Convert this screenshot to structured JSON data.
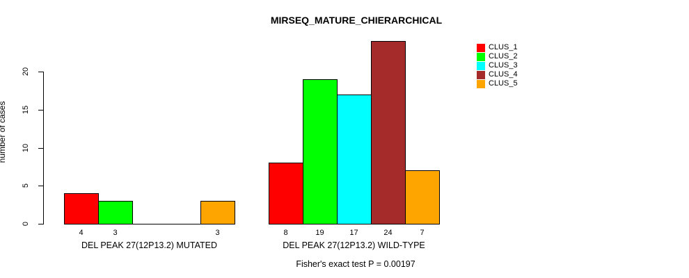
{
  "title": "MIRSEQ_MATURE_CHIERARCHICAL",
  "annotation": "Fisher's exact test P = 0.00197",
  "chart_data": {
    "type": "bar",
    "title": "MIRSEQ_MATURE_CHIERARCHICAL",
    "xlabel": "",
    "ylabel": "number of cases",
    "annotation": "Fisher's exact test P = 0.00197",
    "ylim": [
      0,
      24
    ],
    "yticks": [
      0,
      5,
      10,
      15,
      20
    ],
    "grid": false,
    "legend_position": "top-right",
    "categories": [
      "DEL PEAK 27(12P13.2) MUTATED",
      "DEL PEAK 27(12P13.2) WILD-TYPE"
    ],
    "series": [
      {
        "name": "CLUS_1",
        "color": "#FF0000",
        "values": [
          4,
          8
        ]
      },
      {
        "name": "CLUS_2",
        "color": "#00FF00",
        "values": [
          3,
          19
        ]
      },
      {
        "name": "CLUS_3",
        "color": "#00FFFF",
        "values": [
          0,
          17
        ]
      },
      {
        "name": "CLUS_4",
        "color": "#A52A2A",
        "values": [
          0,
          24
        ]
      },
      {
        "name": "CLUS_5",
        "color": "#FFA500",
        "values": [
          3,
          7
        ]
      }
    ],
    "bar_labels": [
      [
        "4",
        "3",
        "",
        "",
        "3"
      ],
      [
        "8",
        "19",
        "17",
        "24",
        "7"
      ]
    ]
  },
  "legend": {
    "items": [
      {
        "label": "CLUS_1",
        "color": "#FF0000"
      },
      {
        "label": "CLUS_2",
        "color": "#00FF00"
      },
      {
        "label": "CLUS_3",
        "color": "#00FFFF"
      },
      {
        "label": "CLUS_4",
        "color": "#A52A2A"
      },
      {
        "label": "CLUS_5",
        "color": "#FFA500"
      }
    ]
  }
}
